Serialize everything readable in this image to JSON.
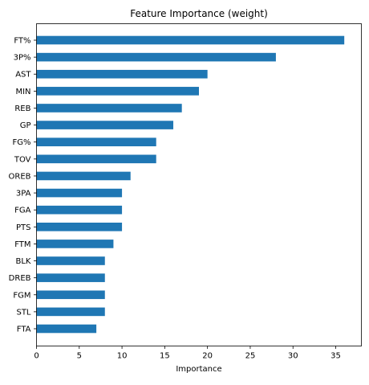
{
  "chart_data": {
    "type": "bar",
    "orientation": "horizontal",
    "title": "Feature Importance (weight)",
    "xlabel": "Importance",
    "ylabel": "",
    "categories": [
      "FT%",
      "3P%",
      "AST",
      "MIN",
      "REB",
      "GP",
      "FG%",
      "TOV",
      "OREB",
      "3PA",
      "FGA",
      "PTS",
      "FTM",
      "BLK",
      "DREB",
      "FGM",
      "STL",
      "FTA"
    ],
    "values": [
      36,
      28,
      20,
      19,
      17,
      16,
      14,
      14,
      11,
      10,
      10,
      10,
      9,
      8,
      8,
      8,
      8,
      7
    ],
    "xlim": [
      0,
      38
    ],
    "xticks": [
      0,
      5,
      10,
      15,
      20,
      25,
      30,
      35
    ],
    "grid": false,
    "bar_color": "#1f77b4"
  }
}
